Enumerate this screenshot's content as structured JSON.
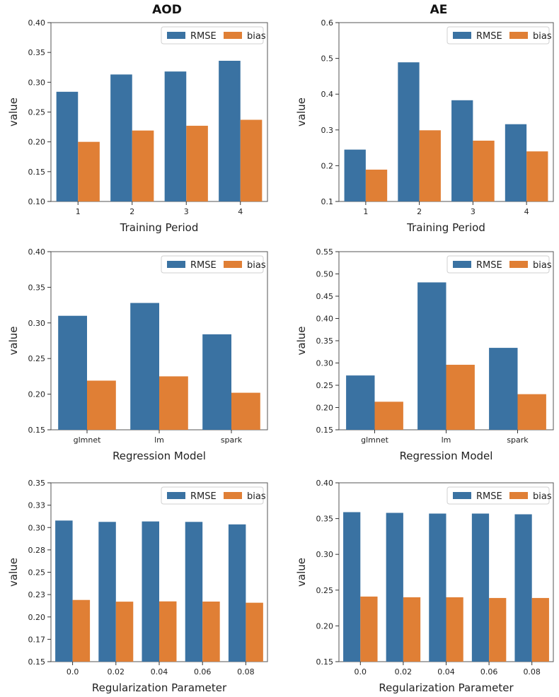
{
  "figure": {
    "column_titles": [
      "AOD",
      "AE"
    ],
    "colors": {
      "rmse": "#3a72a2",
      "bias": "#e07f35"
    },
    "legend_labels": [
      "RMSE",
      "bias"
    ]
  },
  "chart_data": [
    {
      "type": "bar",
      "panel": "aod-training",
      "title": "",
      "xlabel": "Training Period",
      "ylabel": "value",
      "categories": [
        "1",
        "2",
        "3",
        "4"
      ],
      "series": [
        {
          "name": "RMSE",
          "values": [
            0.284,
            0.313,
            0.318,
            0.336
          ]
        },
        {
          "name": "bias",
          "values": [
            0.2,
            0.219,
            0.227,
            0.237
          ]
        }
      ],
      "ylim": [
        0.1,
        0.4
      ],
      "yticks": [
        "0.10",
        "0.15",
        "0.20",
        "0.25",
        "0.30",
        "0.35",
        "0.40"
      ],
      "ytick_values": [
        0.1,
        0.15,
        0.2,
        0.25,
        0.3,
        0.35,
        0.4
      ],
      "legend": "top-right"
    },
    {
      "type": "bar",
      "panel": "ae-training",
      "title": "",
      "xlabel": "Training Period",
      "ylabel": "value",
      "categories": [
        "1",
        "2",
        "3",
        "4"
      ],
      "series": [
        {
          "name": "RMSE",
          "values": [
            0.245,
            0.489,
            0.383,
            0.316
          ]
        },
        {
          "name": "bias",
          "values": [
            0.189,
            0.299,
            0.27,
            0.24
          ]
        }
      ],
      "ylim": [
        0.1,
        0.6
      ],
      "yticks": [
        "0.1",
        "0.2",
        "0.3",
        "0.4",
        "0.5",
        "0.6"
      ],
      "ytick_values": [
        0.1,
        0.2,
        0.3,
        0.4,
        0.5,
        0.6
      ],
      "legend": "top-right"
    },
    {
      "type": "bar",
      "panel": "aod-regression",
      "title": "",
      "xlabel": "Regression Model",
      "ylabel": "value",
      "categories": [
        "glmnet",
        "lm",
        "spark"
      ],
      "series": [
        {
          "name": "RMSE",
          "values": [
            0.31,
            0.328,
            0.284
          ]
        },
        {
          "name": "bias",
          "values": [
            0.219,
            0.225,
            0.202
          ]
        }
      ],
      "ylim": [
        0.15,
        0.4
      ],
      "yticks": [
        "0.15",
        "0.20",
        "0.25",
        "0.30",
        "0.35",
        "0.40"
      ],
      "ytick_values": [
        0.15,
        0.2,
        0.25,
        0.3,
        0.35,
        0.4
      ],
      "legend": "top-right"
    },
    {
      "type": "bar",
      "panel": "ae-regression",
      "title": "",
      "xlabel": "Regression Model",
      "ylabel": "value",
      "categories": [
        "glmnet",
        "lm",
        "spark"
      ],
      "series": [
        {
          "name": "RMSE",
          "values": [
            0.272,
            0.481,
            0.334
          ]
        },
        {
          "name": "bias",
          "values": [
            0.213,
            0.296,
            0.23
          ]
        }
      ],
      "ylim": [
        0.15,
        0.55
      ],
      "yticks": [
        "0.15",
        "0.20",
        "0.25",
        "0.30",
        "0.35",
        "0.40",
        "0.45",
        "0.50",
        "0.55"
      ],
      "ytick_values": [
        0.15,
        0.2,
        0.25,
        0.3,
        0.35,
        0.4,
        0.45,
        0.5,
        0.55
      ],
      "legend": "top-right"
    },
    {
      "type": "bar",
      "panel": "aod-regularization",
      "title": "",
      "xlabel": "Regularization Parameter",
      "ylabel": "value",
      "categories": [
        "0.0",
        "0.02",
        "0.04",
        "0.06",
        "0.08"
      ],
      "series": [
        {
          "name": "RMSE",
          "values": [
            0.3078,
            0.3063,
            0.3068,
            0.3063,
            0.3035
          ]
        },
        {
          "name": "bias",
          "values": [
            0.219,
            0.2171,
            0.2174,
            0.2172,
            0.2159
          ]
        }
      ],
      "ylim": [
        0.15,
        0.35
      ],
      "yticks": [
        "0.15",
        "0.17",
        "0.20",
        "0.23",
        "0.25",
        "0.28",
        "0.30",
        "0.33",
        "0.35"
      ],
      "ytick_values": [
        0.15,
        0.175,
        0.2,
        0.225,
        0.25,
        0.275,
        0.3,
        0.325,
        0.35
      ],
      "legend": "top-right"
    },
    {
      "type": "bar",
      "panel": "ae-regularization",
      "title": "",
      "xlabel": "Regularization Parameter",
      "ylabel": "value",
      "categories": [
        "0.0",
        "0.02",
        "0.04",
        "0.06",
        "0.08"
      ],
      "series": [
        {
          "name": "RMSE",
          "values": [
            0.359,
            0.358,
            0.357,
            0.357,
            0.356
          ]
        },
        {
          "name": "bias",
          "values": [
            0.241,
            0.24,
            0.24,
            0.239,
            0.239
          ]
        }
      ],
      "ylim": [
        0.15,
        0.4
      ],
      "yticks": [
        "0.15",
        "0.20",
        "0.25",
        "0.30",
        "0.35",
        "0.40"
      ],
      "ytick_values": [
        0.15,
        0.2,
        0.25,
        0.3,
        0.35,
        0.4
      ],
      "legend": "top-right"
    }
  ]
}
